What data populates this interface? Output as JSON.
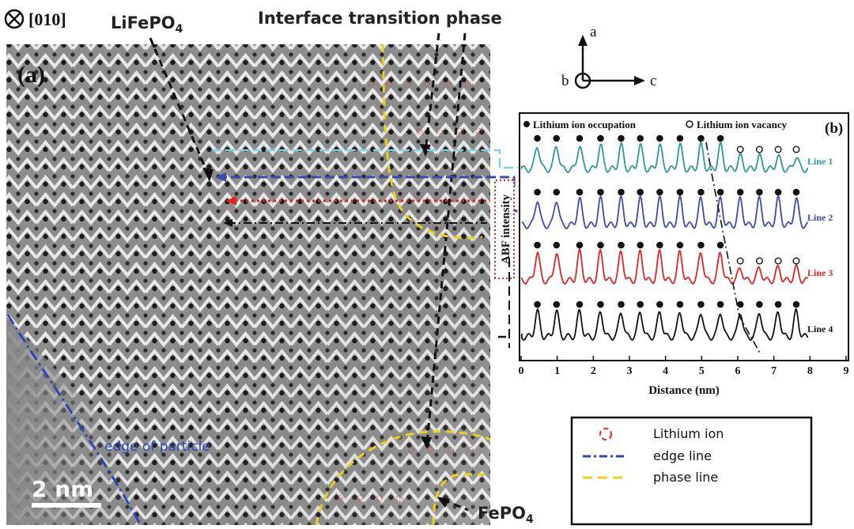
{
  "panel_a": {
    "orientation": "[010]",
    "panel_label": "(a)",
    "label_lifepo4": "LiFePO",
    "label_lifepo4_sub": "4",
    "label_interface": "Interface transition phase",
    "label_edge": "edge of particle",
    "label_fepo4": "FePO",
    "label_fepo4_sub": "4",
    "scalebar": "2 nm"
  },
  "axes_compass": {
    "a": "a",
    "b": "b",
    "c": "c"
  },
  "legend_box": {
    "items": [
      {
        "label": "Lithium ion",
        "color": "#e0352b"
      },
      {
        "label": "edge line",
        "color": "#2f45b5"
      },
      {
        "label": "phase line",
        "color": "#e8d21a"
      }
    ]
  },
  "chart_data": {
    "type": "line",
    "panel_label": "(b)",
    "xlabel": "Distance (nm)",
    "ylabel": "ABF intensity",
    "xlim": [
      0,
      9
    ],
    "xticks": [
      "0",
      "1",
      "2",
      "3",
      "4",
      "5",
      "6",
      "7",
      "8",
      "9"
    ],
    "legend": {
      "occupation": "Lithium ion occupation",
      "vacancy": "Lithium ion vacancy"
    },
    "series": [
      {
        "name": "Line 1",
        "color": "#2a9a94",
        "offset": 3,
        "vacancy_from": 5.6
      },
      {
        "name": "Line 2",
        "color": "#3d49b0",
        "offset": 2,
        "vacancy_from": 99
      },
      {
        "name": "Line 3",
        "color": "#e02424",
        "offset": 1,
        "vacancy_from": 6.0
      },
      {
        "name": "Line 4",
        "color": "#111111",
        "offset": 0,
        "vacancy_from": 99
      }
    ],
    "peak_positions": [
      0.45,
      0.98,
      1.62,
      2.2,
      2.77,
      3.3,
      3.84,
      4.4,
      4.98,
      5.52,
      6.07,
      6.6,
      7.12,
      7.62
    ]
  }
}
